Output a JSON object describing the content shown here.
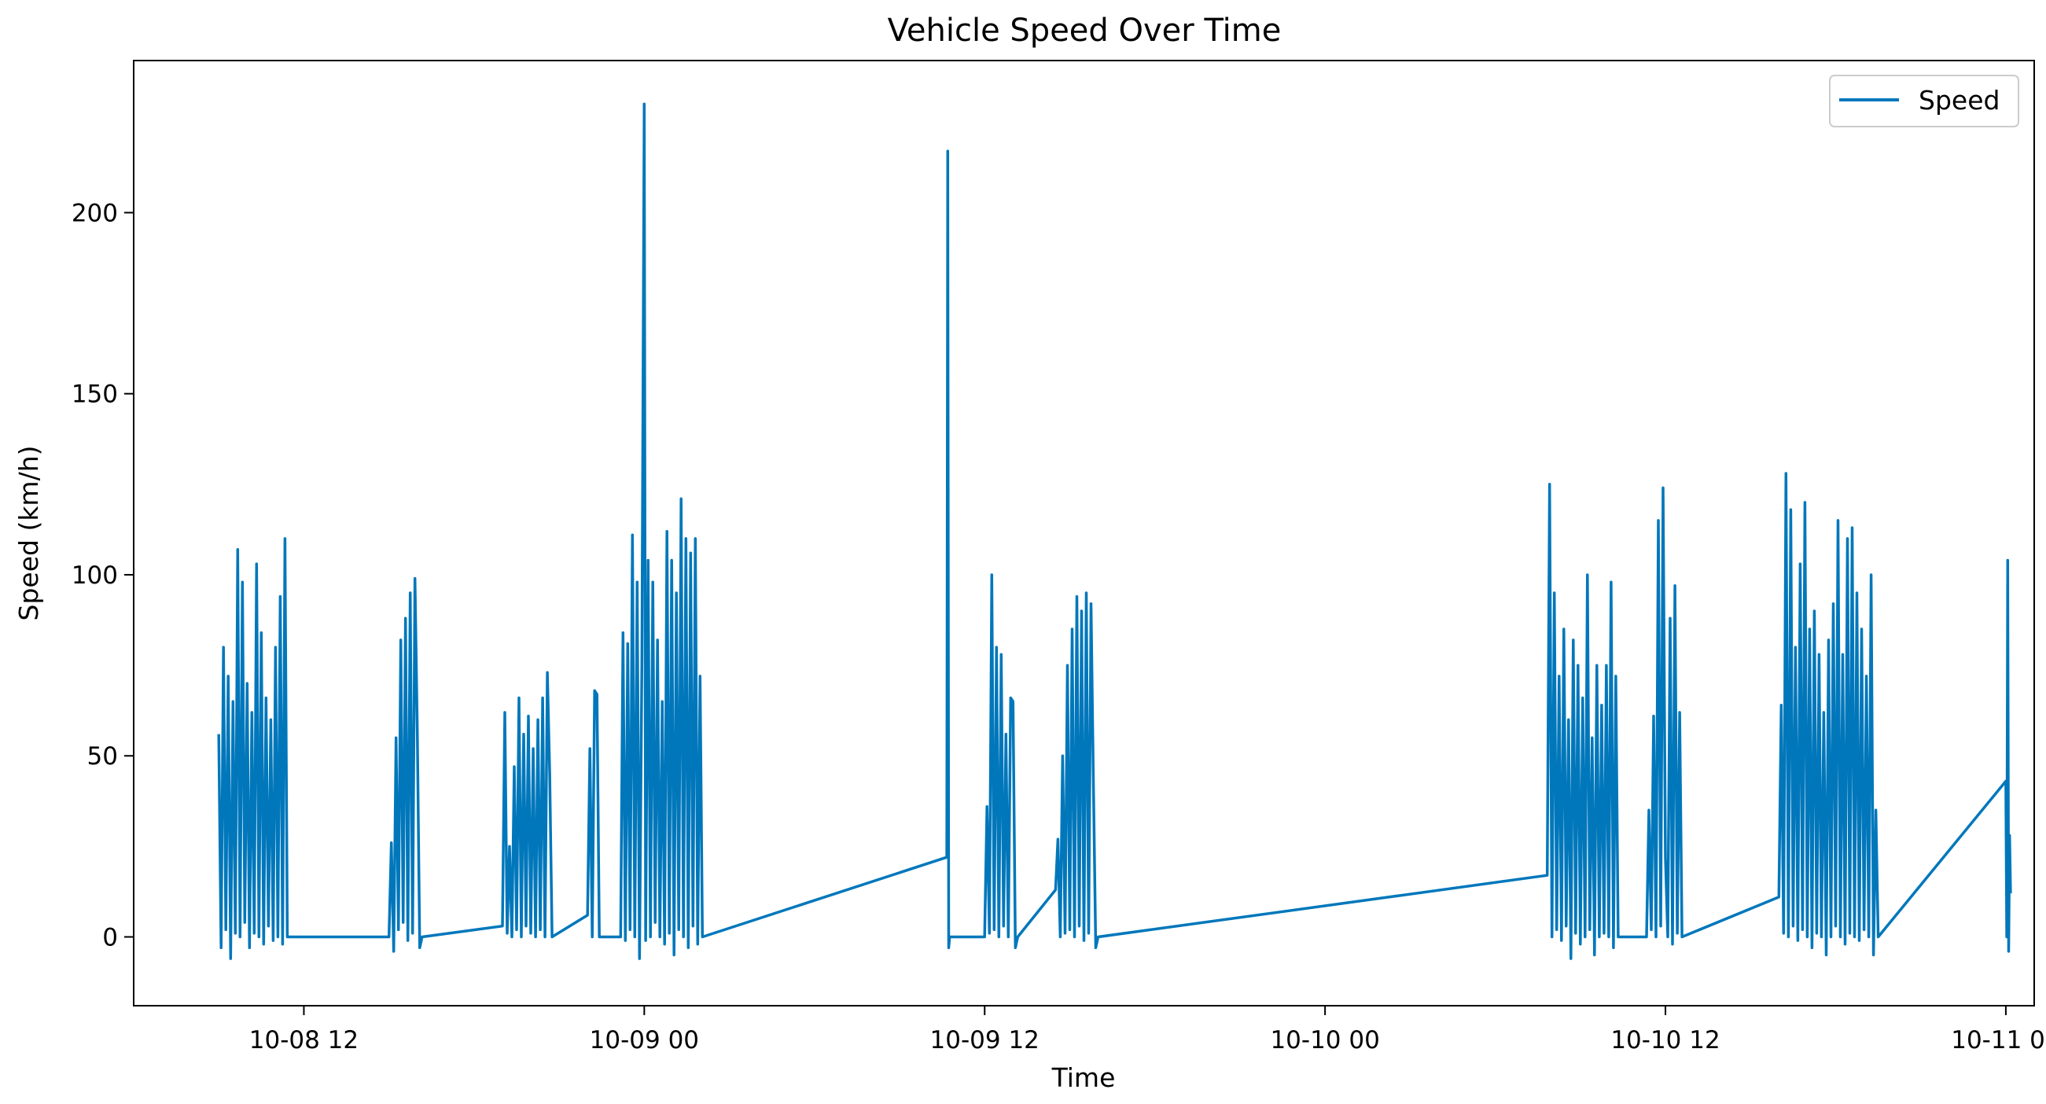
{
  "chart_data": {
    "type": "line",
    "title": "Vehicle Speed Over Time",
    "xlabel": "Time",
    "ylabel": "Speed (km/h)",
    "x_axis": {
      "start": "2023-10-08 06:00",
      "end": "2023-10-11 01:00",
      "tick_values": [
        "2023-10-08 12:00",
        "2023-10-09 00:00",
        "2023-10-09 12:00",
        "2023-10-10 00:00",
        "2023-10-10 12:00",
        "2023-10-11 00:00"
      ],
      "tick_labels": [
        "10-08 12",
        "10-09 00",
        "10-09 12",
        "10-10 00",
        "10-10 12",
        "10-11 00"
      ]
    },
    "y_axis": {
      "ylim": [
        -19,
        242
      ],
      "ticks": [
        0,
        50,
        100,
        150,
        200
      ]
    },
    "grid": false,
    "legend": {
      "position": "top-right",
      "entries": [
        "Speed"
      ]
    },
    "series": [
      {
        "name": "Speed",
        "color": "#0077bb",
        "points": [
          [
            "2023-10-08 09:00",
            56
          ],
          [
            "2023-10-08 09:05",
            -3
          ],
          [
            "2023-10-08 09:10",
            80
          ],
          [
            "2023-10-08 09:15",
            2
          ],
          [
            "2023-10-08 09:20",
            72
          ],
          [
            "2023-10-08 09:25",
            -6
          ],
          [
            "2023-10-08 09:30",
            65
          ],
          [
            "2023-10-08 09:35",
            1
          ],
          [
            "2023-10-08 09:40",
            107
          ],
          [
            "2023-10-08 09:45",
            0
          ],
          [
            "2023-10-08 09:50",
            98
          ],
          [
            "2023-10-08 09:55",
            4
          ],
          [
            "2023-10-08 10:00",
            70
          ],
          [
            "2023-10-08 10:05",
            -3
          ],
          [
            "2023-10-08 10:10",
            62
          ],
          [
            "2023-10-08 10:15",
            1
          ],
          [
            "2023-10-08 10:20",
            103
          ],
          [
            "2023-10-08 10:25",
            0
          ],
          [
            "2023-10-08 10:30",
            84
          ],
          [
            "2023-10-08 10:35",
            -2
          ],
          [
            "2023-10-08 10:40",
            66
          ],
          [
            "2023-10-08 10:45",
            3
          ],
          [
            "2023-10-08 10:50",
            60
          ],
          [
            "2023-10-08 10:55",
            -1
          ],
          [
            "2023-10-08 11:00",
            80
          ],
          [
            "2023-10-08 11:05",
            0
          ],
          [
            "2023-10-08 11:10",
            94
          ],
          [
            "2023-10-08 11:15",
            -2
          ],
          [
            "2023-10-08 11:20",
            110
          ],
          [
            "2023-10-08 11:25",
            0
          ],
          [
            "2023-10-08 15:00",
            0
          ],
          [
            "2023-10-08 15:05",
            26
          ],
          [
            "2023-10-08 15:10",
            -4
          ],
          [
            "2023-10-08 15:15",
            55
          ],
          [
            "2023-10-08 15:20",
            2
          ],
          [
            "2023-10-08 15:25",
            82
          ],
          [
            "2023-10-08 15:30",
            4
          ],
          [
            "2023-10-08 15:35",
            88
          ],
          [
            "2023-10-08 15:40",
            -1
          ],
          [
            "2023-10-08 15:45",
            95
          ],
          [
            "2023-10-08 15:50",
            1
          ],
          [
            "2023-10-08 15:55",
            99
          ],
          [
            "2023-10-08 16:00",
            57
          ],
          [
            "2023-10-08 16:05",
            -3
          ],
          [
            "2023-10-08 16:10",
            0
          ],
          [
            "2023-10-08 19:00",
            3
          ],
          [
            "2023-10-08 19:05",
            62
          ],
          [
            "2023-10-08 19:10",
            1
          ],
          [
            "2023-10-08 19:15",
            25
          ],
          [
            "2023-10-08 19:20",
            0
          ],
          [
            "2023-10-08 19:25",
            47
          ],
          [
            "2023-10-08 19:30",
            2
          ],
          [
            "2023-10-08 19:35",
            66
          ],
          [
            "2023-10-08 19:40",
            0
          ],
          [
            "2023-10-08 19:45",
            56
          ],
          [
            "2023-10-08 19:50",
            3
          ],
          [
            "2023-10-08 19:55",
            61
          ],
          [
            "2023-10-08 20:00",
            1
          ],
          [
            "2023-10-08 20:05",
            52
          ],
          [
            "2023-10-08 20:10",
            0
          ],
          [
            "2023-10-08 20:15",
            60
          ],
          [
            "2023-10-08 20:20",
            2
          ],
          [
            "2023-10-08 20:25",
            66
          ],
          [
            "2023-10-08 20:30",
            0
          ],
          [
            "2023-10-08 20:35",
            73
          ],
          [
            "2023-10-08 20:40",
            45
          ],
          [
            "2023-10-08 20:45",
            0
          ],
          [
            "2023-10-08 22:00",
            6
          ],
          [
            "2023-10-08 22:05",
            52
          ],
          [
            "2023-10-08 22:10",
            0
          ],
          [
            "2023-10-08 22:15",
            68
          ],
          [
            "2023-10-08 22:20",
            67
          ],
          [
            "2023-10-08 22:25",
            0
          ],
          [
            "2023-10-08 23:10",
            0
          ],
          [
            "2023-10-08 23:15",
            84
          ],
          [
            "2023-10-08 23:20",
            -1
          ],
          [
            "2023-10-08 23:25",
            81
          ],
          [
            "2023-10-08 23:30",
            2
          ],
          [
            "2023-10-08 23:35",
            111
          ],
          [
            "2023-10-08 23:40",
            0
          ],
          [
            "2023-10-08 23:45",
            98
          ],
          [
            "2023-10-08 23:50",
            -6
          ],
          [
            "2023-10-08 23:55",
            76
          ],
          [
            "2023-10-09 00:00",
            230
          ],
          [
            "2023-10-09 00:03",
            -1
          ],
          [
            "2023-10-09 00:08",
            104
          ],
          [
            "2023-10-09 00:13",
            0
          ],
          [
            "2023-10-09 00:18",
            98
          ],
          [
            "2023-10-09 00:23",
            4
          ],
          [
            "2023-10-09 00:28",
            82
          ],
          [
            "2023-10-09 00:33",
            0
          ],
          [
            "2023-10-09 00:38",
            65
          ],
          [
            "2023-10-09 00:43",
            -2
          ],
          [
            "2023-10-09 00:48",
            112
          ],
          [
            "2023-10-09 00:53",
            1
          ],
          [
            "2023-10-09 00:58",
            104
          ],
          [
            "2023-10-09 01:03",
            -5
          ],
          [
            "2023-10-09 01:08",
            95
          ],
          [
            "2023-10-09 01:13",
            2
          ],
          [
            "2023-10-09 01:18",
            121
          ],
          [
            "2023-10-09 01:23",
            0
          ],
          [
            "2023-10-09 01:28",
            110
          ],
          [
            "2023-10-09 01:33",
            -3
          ],
          [
            "2023-10-09 01:38",
            106
          ],
          [
            "2023-10-09 01:43",
            3
          ],
          [
            "2023-10-09 01:48",
            110
          ],
          [
            "2023-10-09 01:53",
            -2
          ],
          [
            "2023-10-09 01:58",
            72
          ],
          [
            "2023-10-09 02:03",
            0
          ],
          [
            "2023-10-09 10:40",
            22
          ],
          [
            "2023-10-09 10:42",
            217
          ],
          [
            "2023-10-09 10:44",
            -3
          ],
          [
            "2023-10-09 10:46",
            0
          ],
          [
            "2023-10-09 12:00",
            0
          ],
          [
            "2023-10-09 12:05",
            36
          ],
          [
            "2023-10-09 12:10",
            1
          ],
          [
            "2023-10-09 12:15",
            100
          ],
          [
            "2023-10-09 12:20",
            2
          ],
          [
            "2023-10-09 12:25",
            80
          ],
          [
            "2023-10-09 12:30",
            0
          ],
          [
            "2023-10-09 12:35",
            78
          ],
          [
            "2023-10-09 12:40",
            3
          ],
          [
            "2023-10-09 12:45",
            56
          ],
          [
            "2023-10-09 12:50",
            0
          ],
          [
            "2023-10-09 12:55",
            66
          ],
          [
            "2023-10-09 13:00",
            65
          ],
          [
            "2023-10-09 13:05",
            -3
          ],
          [
            "2023-10-09 13:10",
            0
          ],
          [
            "2023-10-09 14:30",
            13
          ],
          [
            "2023-10-09 14:35",
            27
          ],
          [
            "2023-10-09 14:40",
            0
          ],
          [
            "2023-10-09 14:45",
            50
          ],
          [
            "2023-10-09 14:50",
            1
          ],
          [
            "2023-10-09 14:55",
            75
          ],
          [
            "2023-10-09 15:00",
            2
          ],
          [
            "2023-10-09 15:05",
            85
          ],
          [
            "2023-10-09 15:10",
            0
          ],
          [
            "2023-10-09 15:15",
            94
          ],
          [
            "2023-10-09 15:20",
            3
          ],
          [
            "2023-10-09 15:25",
            90
          ],
          [
            "2023-10-09 15:30",
            -1
          ],
          [
            "2023-10-09 15:35",
            95
          ],
          [
            "2023-10-09 15:40",
            1
          ],
          [
            "2023-10-09 15:45",
            92
          ],
          [
            "2023-10-09 15:50",
            43
          ],
          [
            "2023-10-09 15:55",
            -3
          ],
          [
            "2023-10-09 16:00",
            0
          ],
          [
            "2023-10-10 07:50",
            17
          ],
          [
            "2023-10-10 07:55",
            125
          ],
          [
            "2023-10-10 08:00",
            0
          ],
          [
            "2023-10-10 08:05",
            95
          ],
          [
            "2023-10-10 08:10",
            2
          ],
          [
            "2023-10-10 08:15",
            72
          ],
          [
            "2023-10-10 08:20",
            -1
          ],
          [
            "2023-10-10 08:25",
            85
          ],
          [
            "2023-10-10 08:30",
            3
          ],
          [
            "2023-10-10 08:35",
            60
          ],
          [
            "2023-10-10 08:40",
            -6
          ],
          [
            "2023-10-10 08:45",
            82
          ],
          [
            "2023-10-10 08:50",
            1
          ],
          [
            "2023-10-10 08:55",
            75
          ],
          [
            "2023-10-10 09:00",
            -2
          ],
          [
            "2023-10-10 09:05",
            66
          ],
          [
            "2023-10-10 09:10",
            0
          ],
          [
            "2023-10-10 09:15",
            100
          ],
          [
            "2023-10-10 09:20",
            2
          ],
          [
            "2023-10-10 09:25",
            55
          ],
          [
            "2023-10-10 09:30",
            -5
          ],
          [
            "2023-10-10 09:35",
            75
          ],
          [
            "2023-10-10 09:40",
            0
          ],
          [
            "2023-10-10 09:45",
            64
          ],
          [
            "2023-10-10 09:50",
            1
          ],
          [
            "2023-10-10 09:55",
            75
          ],
          [
            "2023-10-10 10:00",
            0
          ],
          [
            "2023-10-10 10:05",
            98
          ],
          [
            "2023-10-10 10:10",
            -3
          ],
          [
            "2023-10-10 10:15",
            72
          ],
          [
            "2023-10-10 10:20",
            0
          ],
          [
            "2023-10-10 11:20",
            0
          ],
          [
            "2023-10-10 11:25",
            35
          ],
          [
            "2023-10-10 11:30",
            2
          ],
          [
            "2023-10-10 11:35",
            61
          ],
          [
            "2023-10-10 11:40",
            0
          ],
          [
            "2023-10-10 11:45",
            115
          ],
          [
            "2023-10-10 11:50",
            3
          ],
          [
            "2023-10-10 11:55",
            124
          ],
          [
            "2023-10-10 12:00",
            22
          ],
          [
            "2023-10-10 12:05",
            0
          ],
          [
            "2023-10-10 12:10",
            88
          ],
          [
            "2023-10-10 12:15",
            -2
          ],
          [
            "2023-10-10 12:20",
            97
          ],
          [
            "2023-10-10 12:25",
            1
          ],
          [
            "2023-10-10 12:30",
            62
          ],
          [
            "2023-10-10 12:35",
            0
          ],
          [
            "2023-10-10 16:00",
            11
          ],
          [
            "2023-10-10 16:05",
            64
          ],
          [
            "2023-10-10 16:10",
            1
          ],
          [
            "2023-10-10 16:15",
            128
          ],
          [
            "2023-10-10 16:20",
            0
          ],
          [
            "2023-10-10 16:25",
            118
          ],
          [
            "2023-10-10 16:30",
            3
          ],
          [
            "2023-10-10 16:35",
            80
          ],
          [
            "2023-10-10 16:40",
            -1
          ],
          [
            "2023-10-10 16:45",
            103
          ],
          [
            "2023-10-10 16:50",
            2
          ],
          [
            "2023-10-10 16:55",
            120
          ],
          [
            "2023-10-10 17:00",
            0
          ],
          [
            "2023-10-10 17:05",
            85
          ],
          [
            "2023-10-10 17:10",
            -3
          ],
          [
            "2023-10-10 17:15",
            90
          ],
          [
            "2023-10-10 17:20",
            1
          ],
          [
            "2023-10-10 17:25",
            78
          ],
          [
            "2023-10-10 17:30",
            0
          ],
          [
            "2023-10-10 17:35",
            62
          ],
          [
            "2023-10-10 17:40",
            -5
          ],
          [
            "2023-10-10 17:45",
            82
          ],
          [
            "2023-10-10 17:50",
            0
          ],
          [
            "2023-10-10 17:55",
            92
          ],
          [
            "2023-10-10 18:00",
            3
          ],
          [
            "2023-10-10 18:05",
            115
          ],
          [
            "2023-10-10 18:10",
            0
          ],
          [
            "2023-10-10 18:15",
            78
          ],
          [
            "2023-10-10 18:20",
            -2
          ],
          [
            "2023-10-10 18:25",
            110
          ],
          [
            "2023-10-10 18:30",
            1
          ],
          [
            "2023-10-10 18:35",
            113
          ],
          [
            "2023-10-10 18:40",
            0
          ],
          [
            "2023-10-10 18:45",
            95
          ],
          [
            "2023-10-10 18:50",
            -1
          ],
          [
            "2023-10-10 18:55",
            85
          ],
          [
            "2023-10-10 19:00",
            2
          ],
          [
            "2023-10-10 19:05",
            72
          ],
          [
            "2023-10-10 19:10",
            0
          ],
          [
            "2023-10-10 19:15",
            100
          ],
          [
            "2023-10-10 19:20",
            -5
          ],
          [
            "2023-10-10 19:25",
            35
          ],
          [
            "2023-10-10 19:30",
            0
          ],
          [
            "2023-10-11 00:00",
            43
          ],
          [
            "2023-10-11 00:02",
            0
          ],
          [
            "2023-10-11 00:04",
            104
          ],
          [
            "2023-10-11 00:06",
            -4
          ],
          [
            "2023-10-11 00:08",
            28
          ],
          [
            "2023-10-11 00:10",
            12
          ]
        ]
      }
    ]
  }
}
